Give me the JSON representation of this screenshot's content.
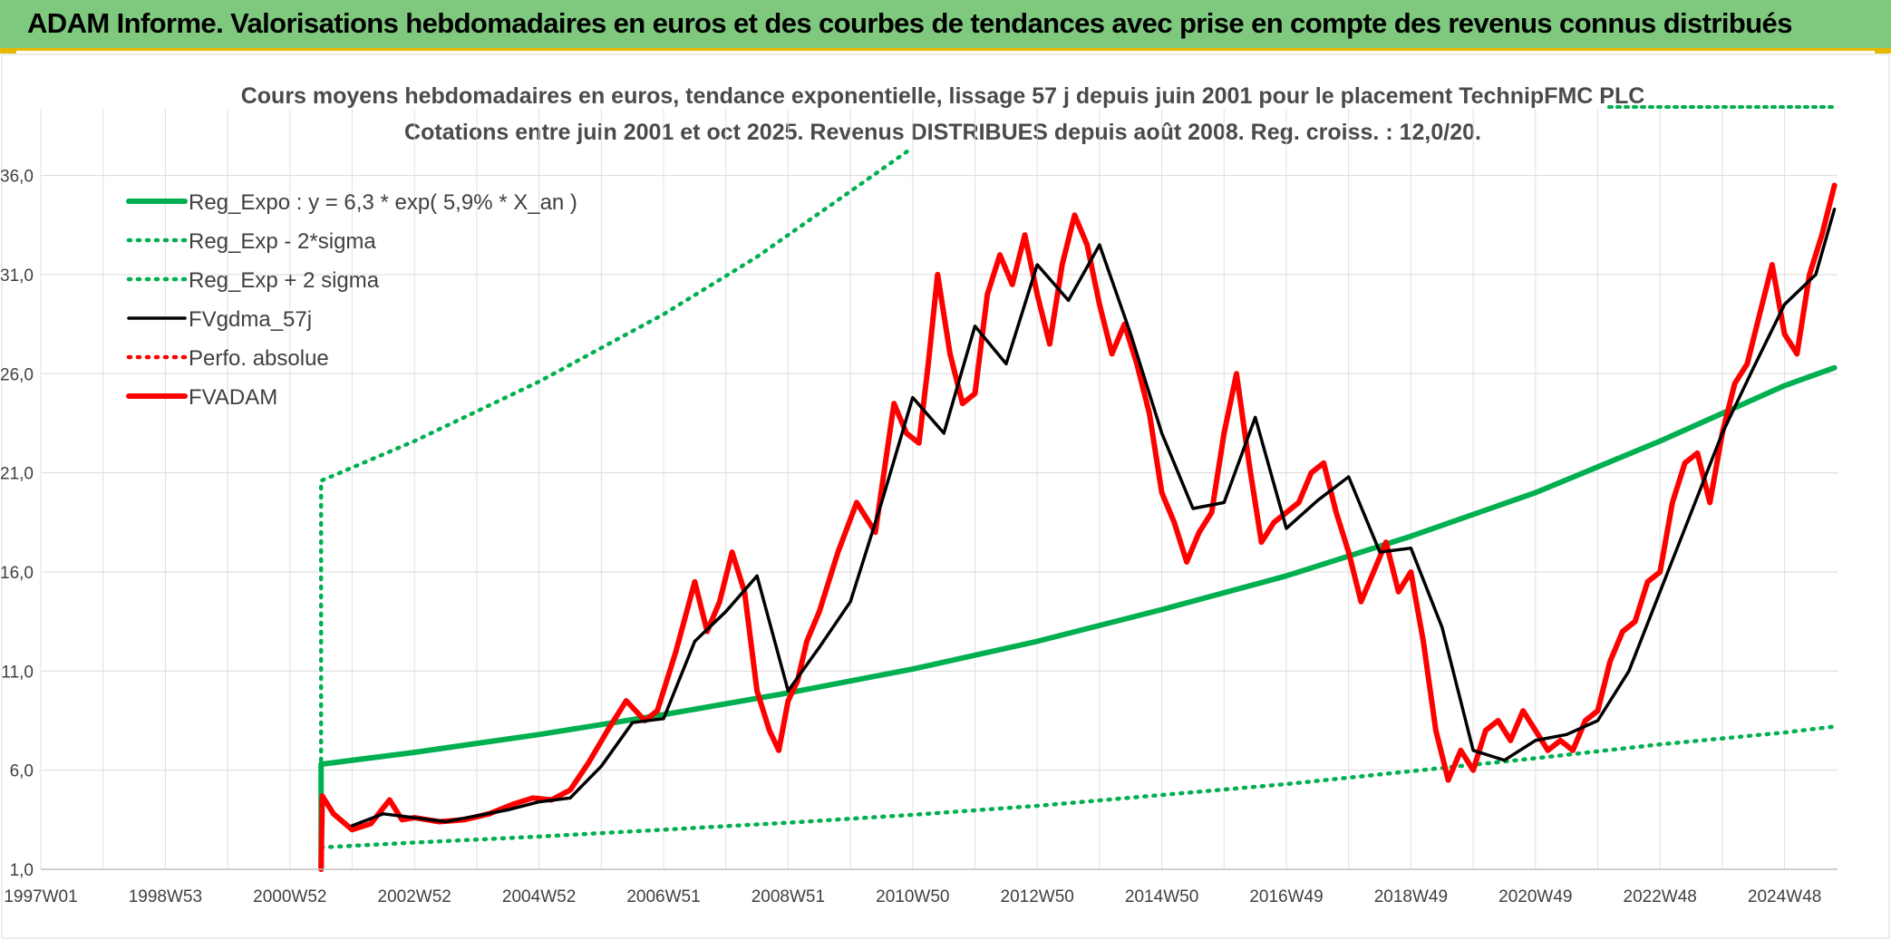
{
  "header": {
    "title": "ADAM Informe. Valorisations hebdomadaires en euros et des courbes de tendances avec prise en compte des revenus connus distribués"
  },
  "colors": {
    "header_bg": "#7fc97f",
    "accent": "#e6b800",
    "reg_expo": "#00b050",
    "fvgdma": "#000000",
    "fvadam": "#ff0000"
  },
  "chart_data": {
    "type": "line",
    "title": "Cours moyens hebdomadaires en euros, tendance exponentielle, lissage 57 j depuis juin 2001 pour le placement TechnipFMC PLC",
    "subtitle": "Cotations entre juin 2001 et oct 2025. Revenus DISTRIBUES depuis août 2008. Reg. croiss. : 12,0/20.",
    "xlabel": "",
    "ylabel": "",
    "ylim": [
      1,
      39
    ],
    "xlim": [
      1997.0,
      2025.85
    ],
    "yticks": [
      "1,0",
      "6,0",
      "11,0",
      "16,0",
      "21,0",
      "26,0",
      "31,0",
      "36,0"
    ],
    "ytick_values": [
      1,
      6,
      11,
      16,
      21,
      26,
      31,
      36
    ],
    "xticks": [
      "1997W01",
      "1998W53",
      "2000W52",
      "2002W52",
      "2004W52",
      "2006W51",
      "2008W51",
      "2010W50",
      "2012W50",
      "2014W50",
      "2016W49",
      "2018W49",
      "2020W49",
      "2022W48",
      "2024W48"
    ],
    "xtick_values": [
      1997.0,
      1999.0,
      2001.0,
      2003.0,
      2005.0,
      2007.0,
      2009.0,
      2011.0,
      2013.0,
      2015.0,
      2017.0,
      2019.0,
      2021.0,
      2023.0,
      2025.0
    ],
    "legend_position": "top-left",
    "grid": true,
    "series": [
      {
        "name": "Reg_Expo : y = 6,3 * exp( 5,9% *  X_an )",
        "style": "solid-thick",
        "color": "#00b050",
        "x": [
          2001.5,
          2001.5,
          2003.0,
          2005.0,
          2007.0,
          2009.0,
          2011.0,
          2013.0,
          2015.0,
          2017.0,
          2019.0,
          2021.0,
          2023.0,
          2025.0,
          2025.8
        ],
        "y": [
          1.0,
          6.3,
          6.9,
          7.8,
          8.8,
          9.9,
          11.1,
          12.5,
          14.1,
          15.8,
          17.8,
          20.0,
          22.6,
          25.4,
          26.3
        ]
      },
      {
        "name": "Reg_Exp - 2*sigma",
        "style": "dotted",
        "color": "#00b050",
        "x": [
          2001.5,
          2003.0,
          2005.0,
          2007.0,
          2009.0,
          2011.0,
          2013.0,
          2015.0,
          2017.0,
          2019.0,
          2021.0,
          2023.0,
          2025.0,
          2025.8
        ],
        "y": [
          2.1,
          2.35,
          2.65,
          3.0,
          3.35,
          3.75,
          4.2,
          4.75,
          5.3,
          5.95,
          6.6,
          7.3,
          7.9,
          8.2
        ]
      },
      {
        "name": "Reg_Exp + 2 sigma",
        "style": "dotted",
        "color": "#00b050",
        "x": [
          2001.5,
          2001.5,
          2003.0,
          2005.0,
          2007.0,
          2008.5,
          2010.0,
          2010.95
        ],
        "y": [
          1.0,
          20.6,
          22.6,
          25.6,
          29.0,
          31.9,
          35.2,
          37.3
        ]
      },
      {
        "name": "FVgdma_57j",
        "style": "solid",
        "color": "#000000",
        "x": [
          2002.0,
          2002.5,
          2003.0,
          2003.5,
          2004.0,
          2004.5,
          2005.0,
          2005.5,
          2006.0,
          2006.5,
          2007.0,
          2007.5,
          2008.0,
          2008.5,
          2009.0,
          2009.5,
          2010.0,
          2010.5,
          2011.0,
          2011.5,
          2012.0,
          2012.5,
          2013.0,
          2013.5,
          2014.0,
          2014.5,
          2015.0,
          2015.5,
          2016.0,
          2016.5,
          2017.0,
          2017.5,
          2018.0,
          2018.5,
          2019.0,
          2019.5,
          2020.0,
          2020.5,
          2021.0,
          2021.5,
          2022.0,
          2022.5,
          2023.0,
          2023.5,
          2024.0,
          2024.5,
          2025.0,
          2025.5,
          2025.8
        ],
        "y": [
          3.2,
          3.8,
          3.6,
          3.4,
          3.7,
          4.0,
          4.4,
          4.6,
          6.2,
          8.4,
          8.6,
          12.5,
          14.0,
          15.8,
          10.0,
          12.2,
          14.5,
          19.5,
          24.8,
          23.0,
          28.4,
          26.5,
          31.5,
          29.7,
          32.5,
          28.0,
          23.0,
          19.2,
          19.5,
          23.8,
          18.2,
          19.6,
          20.8,
          17.0,
          17.2,
          13.2,
          7.0,
          6.5,
          7.5,
          7.8,
          8.5,
          11.0,
          15.0,
          19.0,
          23.0,
          26.3,
          29.5,
          31.0,
          34.3
        ]
      },
      {
        "name": "Perfo. absolue",
        "style": "dotted",
        "color": "#ff0000",
        "x": [],
        "y": []
      },
      {
        "name": "FVADAM",
        "style": "solid-thick",
        "color": "#ff0000",
        "x": [
          2001.5,
          2001.52,
          2001.7,
          2002.0,
          2002.3,
          2002.6,
          2002.8,
          2003.0,
          2003.4,
          2003.8,
          2004.2,
          2004.6,
          2004.9,
          2005.2,
          2005.5,
          2005.8,
          2006.1,
          2006.4,
          2006.7,
          2006.9,
          2007.2,
          2007.5,
          2007.7,
          2007.9,
          2008.1,
          2008.3,
          2008.5,
          2008.7,
          2008.85,
          2009.0,
          2009.15,
          2009.3,
          2009.5,
          2009.8,
          2010.1,
          2010.4,
          2010.7,
          2010.9,
          2011.1,
          2011.25,
          2011.4,
          2011.6,
          2011.8,
          2012.0,
          2012.2,
          2012.4,
          2012.6,
          2012.8,
          2013.0,
          2013.2,
          2013.4,
          2013.6,
          2013.8,
          2014.0,
          2014.2,
          2014.4,
          2014.6,
          2014.8,
          2015.0,
          2015.2,
          2015.4,
          2015.6,
          2015.8,
          2016.0,
          2016.2,
          2016.4,
          2016.6,
          2016.8,
          2017.0,
          2017.2,
          2017.4,
          2017.6,
          2017.8,
          2018.0,
          2018.2,
          2018.4,
          2018.6,
          2018.8,
          2019.0,
          2019.2,
          2019.4,
          2019.6,
          2019.8,
          2020.0,
          2020.2,
          2020.4,
          2020.6,
          2020.8,
          2021.0,
          2021.2,
          2021.4,
          2021.6,
          2021.8,
          2022.0,
          2022.2,
          2022.4,
          2022.6,
          2022.8,
          2023.0,
          2023.2,
          2023.4,
          2023.6,
          2023.8,
          2024.0,
          2024.2,
          2024.4,
          2024.6,
          2024.8,
          2025.0,
          2025.2,
          2025.4,
          2025.6,
          2025.8
        ],
        "y": [
          1.0,
          4.7,
          3.8,
          3.0,
          3.3,
          4.5,
          3.5,
          3.6,
          3.4,
          3.5,
          3.8,
          4.3,
          4.6,
          4.5,
          5.0,
          6.4,
          8.0,
          9.5,
          8.5,
          9.0,
          12.0,
          15.5,
          13.0,
          14.5,
          17.0,
          15.0,
          10.0,
          8.0,
          7.0,
          9.5,
          10.5,
          12.5,
          14.0,
          17.0,
          19.5,
          18.0,
          24.5,
          23.0,
          22.5,
          26.5,
          31.0,
          27.0,
          24.5,
          25.0,
          30.0,
          32.0,
          30.5,
          33.0,
          30.0,
          27.5,
          31.5,
          34.0,
          32.5,
          29.5,
          27.0,
          28.5,
          26.5,
          24.0,
          20.0,
          18.5,
          16.5,
          18.0,
          19.0,
          23.0,
          26.0,
          21.5,
          17.5,
          18.5,
          19.0,
          19.5,
          21.0,
          21.5,
          19.0,
          17.0,
          14.5,
          16.0,
          17.5,
          15.0,
          16.0,
          12.5,
          8.0,
          5.5,
          7.0,
          6.0,
          8.0,
          8.5,
          7.5,
          9.0,
          8.0,
          7.0,
          7.5,
          7.0,
          8.5,
          9.0,
          11.5,
          13.0,
          13.5,
          15.5,
          16.0,
          19.5,
          21.5,
          22.0,
          19.5,
          23.0,
          25.5,
          26.5,
          29.0,
          31.5,
          28.0,
          27.0,
          31.0,
          33.0,
          35.5
        ]
      }
    ]
  }
}
